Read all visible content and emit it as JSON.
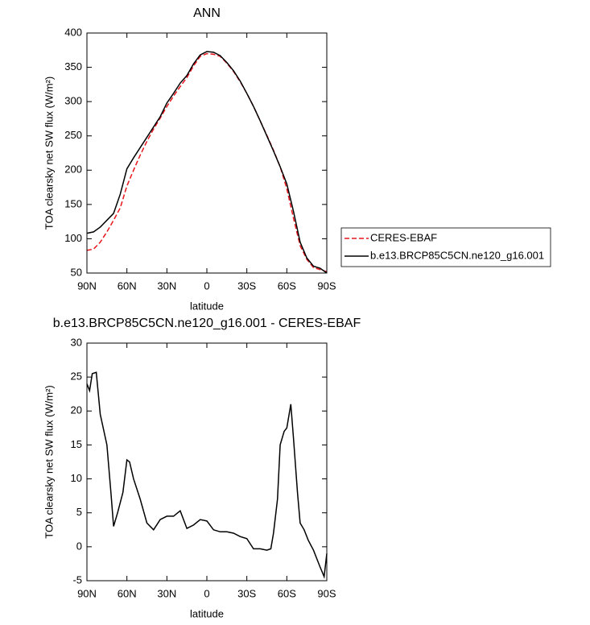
{
  "chart_data": [
    {
      "type": "line",
      "title": "ANN",
      "xlabel": "latitude",
      "ylabel": "TOA clearsky net SW flux (W/m²)",
      "x": [
        90,
        85,
        80,
        75,
        70,
        65,
        60,
        55,
        50,
        45,
        40,
        35,
        30,
        25,
        20,
        15,
        10,
        5,
        0,
        -5,
        -10,
        -15,
        -20,
        -25,
        -30,
        -35,
        -40,
        -45,
        -50,
        -55,
        -60,
        -65,
        -70,
        -75,
        -80,
        -85,
        -90
      ],
      "series": [
        {
          "name": "CERES-EBAF",
          "color": "#e8141c",
          "line_style": "dashed",
          "values": [
            83,
            85,
            95,
            110,
            127,
            145,
            177,
            200,
            222,
            242,
            260,
            276,
            293,
            308,
            322,
            335,
            352,
            366,
            370,
            369,
            366,
            356,
            344,
            329,
            312,
            293,
            272,
            251,
            229,
            205,
            173,
            130,
            90,
            70,
            58,
            55,
            52
          ]
        },
        {
          "name": "b.e13.BRCP85C5CN.ne120_g16.001",
          "color": "#000000",
          "line_style": "solid",
          "values": [
            108,
            110,
            117,
            127,
            137,
            165,
            202,
            218,
            233,
            248,
            263,
            278,
            298,
            312,
            327,
            338,
            355,
            368,
            373,
            372,
            367,
            357,
            345,
            330,
            312,
            293,
            272,
            250,
            228,
            205,
            180,
            140,
            95,
            72,
            60,
            57,
            50
          ]
        }
      ],
      "xlim": [
        90,
        -90
      ],
      "xticks": [
        {
          "value": 90,
          "label": "90N"
        },
        {
          "value": 60,
          "label": "60N"
        },
        {
          "value": 30,
          "label": "30N"
        },
        0,
        {
          "value": -30,
          "label": "30S"
        },
        {
          "value": -60,
          "label": "60S"
        },
        {
          "value": -90,
          "label": "90S"
        }
      ],
      "ylim": [
        50,
        400
      ],
      "yticks": [
        50,
        100,
        150,
        200,
        250,
        300,
        350,
        400
      ],
      "legend_position": "right"
    },
    {
      "type": "line",
      "title": "b.e13.BRCP85C5CN.ne120_g16.001 - CERES-EBAF",
      "xlabel": "latitude",
      "ylabel": "TOA clearsky net SW flux (W/m²)",
      "x": [
        90,
        88,
        86,
        83,
        80,
        75,
        72,
        70,
        67,
        63,
        60,
        58,
        55,
        50,
        45,
        40,
        35,
        30,
        25,
        20,
        15,
        10,
        5,
        0,
        -5,
        -10,
        -15,
        -20,
        -25,
        -30,
        -35,
        -40,
        -45,
        -48,
        -50,
        -53,
        -55,
        -58,
        -60,
        -63,
        -65,
        -68,
        -70,
        -73,
        -76,
        -80,
        -85,
        -88,
        -90
      ],
      "series": [
        {
          "color": "#000000",
          "line_style": "solid",
          "values": [
            24,
            23,
            25.5,
            25.7,
            19.5,
            15,
            8,
            3,
            5,
            8,
            12.8,
            12.5,
            10,
            7,
            3.5,
            2.5,
            4,
            4.5,
            4.5,
            5.3,
            2.7,
            3.2,
            4,
            3.8,
            2.5,
            2.2,
            2.2,
            2,
            1.5,
            1.2,
            -0.3,
            -0.3,
            -0.5,
            -0.3,
            2,
            7,
            15,
            17,
            17.5,
            21,
            16,
            8,
            3.5,
            2.5,
            1,
            -0.5,
            -3,
            -4.4,
            -1
          ]
        }
      ],
      "xlim": [
        90,
        -90
      ],
      "xticks": [
        {
          "value": 90,
          "label": "90N"
        },
        {
          "value": 60,
          "label": "60N"
        },
        {
          "value": 30,
          "label": "30N"
        },
        0,
        {
          "value": -30,
          "label": "30S"
        },
        {
          "value": -60,
          "label": "60S"
        },
        {
          "value": -90,
          "label": "90S"
        }
      ],
      "ylim": [
        -5,
        30
      ],
      "yticks": [
        -5,
        0,
        5,
        10,
        15,
        20,
        25,
        30
      ]
    }
  ]
}
